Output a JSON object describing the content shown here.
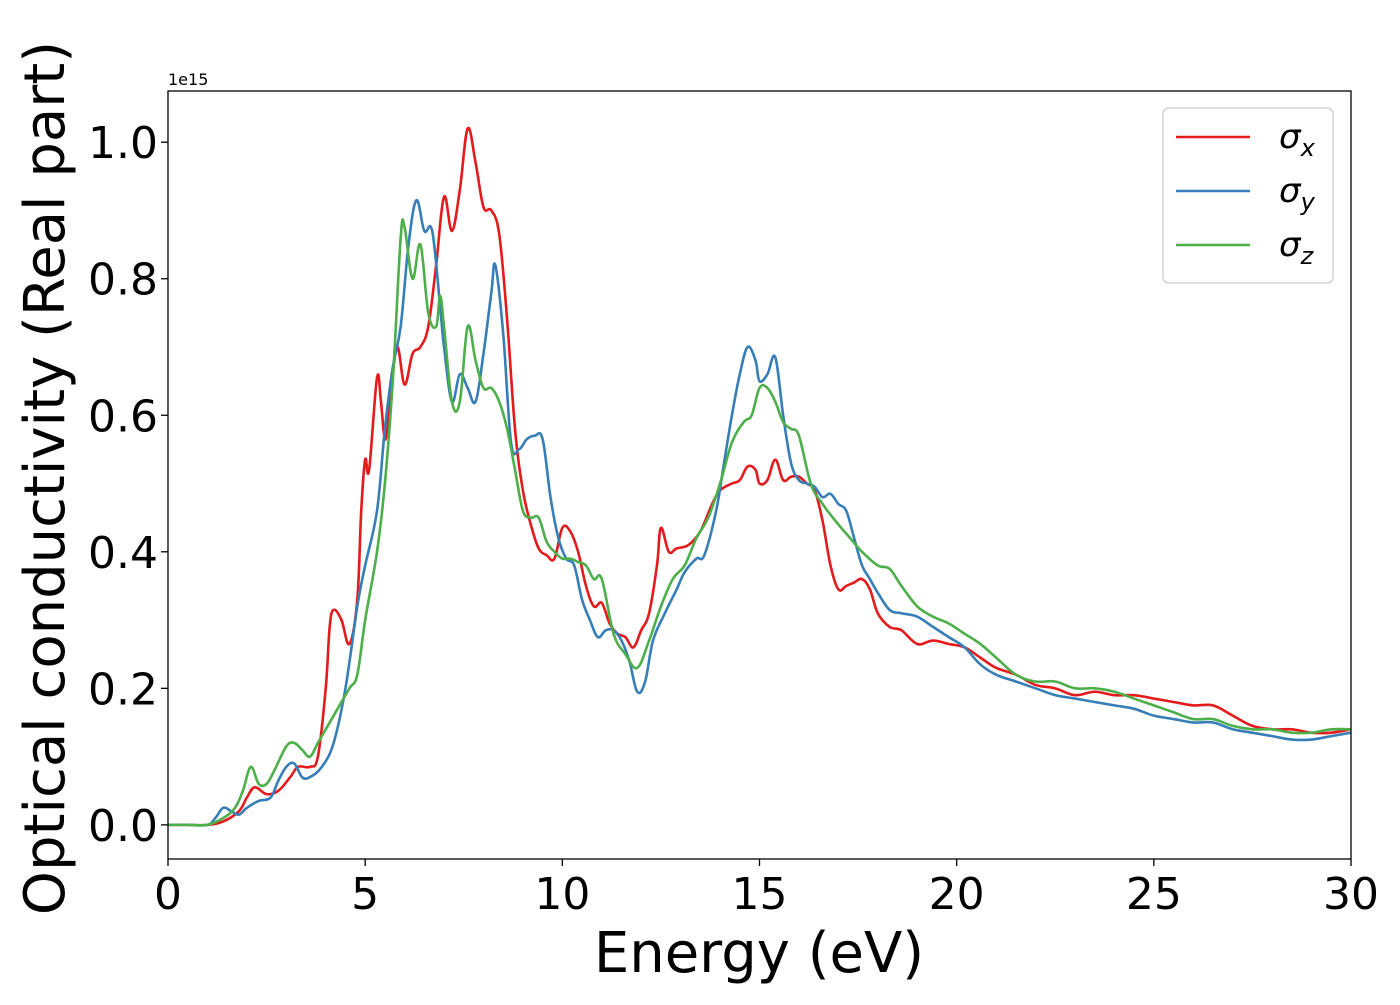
{
  "chart_data": {
    "type": "line",
    "title": "",
    "xlabel": "Energy (eV)",
    "ylabel": "Optical conductivity (Real part)",
    "offset_label": "1e15",
    "xlim": [
      0,
      30
    ],
    "ylim": [
      -0.05,
      1.075
    ],
    "xticks": [
      0,
      5,
      10,
      15,
      20,
      25,
      30
    ],
    "xtick_labels": [
      "0",
      "5",
      "10",
      "15",
      "20",
      "25",
      "30"
    ],
    "yticks": [
      0.0,
      0.2,
      0.4,
      0.6,
      0.8,
      1.0
    ],
    "ytick_labels": [
      "0.0",
      "0.2",
      "0.4",
      "0.6",
      "0.8",
      "1.0"
    ],
    "grid": false,
    "legend_position": "top-right",
    "series": [
      {
        "name": "σx",
        "legend_symbol": "σ",
        "legend_subscript": "x",
        "color": "#e41a1c",
        "x": [
          0,
          0.5,
          1.0,
          1.4,
          1.8,
          2.0,
          2.2,
          2.5,
          2.8,
          3.1,
          3.3,
          3.6,
          3.8,
          4.0,
          4.1,
          4.2,
          4.4,
          4.6,
          4.8,
          4.9,
          5.0,
          5.1,
          5.3,
          5.4,
          5.5,
          5.6,
          5.8,
          6.0,
          6.2,
          6.4,
          6.6,
          6.8,
          7.0,
          7.2,
          7.4,
          7.6,
          7.8,
          8.0,
          8.2,
          8.4,
          8.6,
          8.8,
          9.0,
          9.2,
          9.4,
          9.6,
          9.8,
          10.0,
          10.2,
          10.4,
          10.6,
          10.8,
          11.0,
          11.2,
          11.4,
          11.6,
          11.8,
          12.0,
          12.2,
          12.4,
          12.5,
          12.7,
          12.9,
          13.2,
          13.5,
          13.8,
          14.0,
          14.3,
          14.5,
          14.7,
          14.9,
          15.0,
          15.2,
          15.4,
          15.6,
          15.8,
          16.0,
          16.2,
          16.4,
          16.6,
          16.8,
          17.0,
          17.2,
          17.4,
          17.6,
          17.8,
          18.0,
          18.3,
          18.6,
          19.0,
          19.4,
          19.8,
          20.2,
          20.6,
          21.0,
          21.5,
          22.0,
          22.5,
          23.0,
          23.5,
          24.0,
          24.5,
          25.0,
          25.5,
          26.0,
          26.5,
          27.0,
          27.5,
          28.0,
          28.5,
          29.0,
          29.5,
          30.0
        ],
        "values": [
          0.0,
          0.0,
          0.0,
          0.005,
          0.02,
          0.04,
          0.055,
          0.045,
          0.05,
          0.07,
          0.085,
          0.085,
          0.1,
          0.2,
          0.29,
          0.315,
          0.3,
          0.265,
          0.33,
          0.46,
          0.535,
          0.52,
          0.655,
          0.62,
          0.565,
          0.6,
          0.7,
          0.645,
          0.69,
          0.7,
          0.73,
          0.82,
          0.92,
          0.87,
          0.93,
          1.02,
          0.97,
          0.905,
          0.9,
          0.865,
          0.74,
          0.58,
          0.49,
          0.44,
          0.405,
          0.395,
          0.39,
          0.435,
          0.43,
          0.4,
          0.35,
          0.32,
          0.325,
          0.295,
          0.28,
          0.275,
          0.26,
          0.285,
          0.31,
          0.38,
          0.435,
          0.4,
          0.405,
          0.41,
          0.43,
          0.47,
          0.49,
          0.5,
          0.505,
          0.525,
          0.52,
          0.5,
          0.505,
          0.535,
          0.505,
          0.51,
          0.51,
          0.5,
          0.49,
          0.445,
          0.38,
          0.345,
          0.35,
          0.355,
          0.36,
          0.345,
          0.31,
          0.29,
          0.285,
          0.265,
          0.27,
          0.265,
          0.26,
          0.245,
          0.23,
          0.22,
          0.205,
          0.2,
          0.19,
          0.195,
          0.19,
          0.19,
          0.185,
          0.18,
          0.175,
          0.175,
          0.16,
          0.145,
          0.14,
          0.14,
          0.135,
          0.135,
          0.14
        ]
      },
      {
        "name": "σy",
        "legend_symbol": "σ",
        "legend_subscript": "y",
        "color": "#377eb8",
        "x": [
          0,
          0.5,
          1.0,
          1.2,
          1.4,
          1.6,
          1.8,
          2.0,
          2.3,
          2.6,
          2.8,
          3.0,
          3.2,
          3.4,
          3.6,
          3.9,
          4.2,
          4.5,
          4.8,
          5.0,
          5.3,
          5.5,
          5.7,
          5.9,
          6.1,
          6.3,
          6.5,
          6.7,
          6.9,
          7.0,
          7.2,
          7.4,
          7.6,
          7.8,
          8.0,
          8.2,
          8.3,
          8.5,
          8.7,
          8.9,
          9.1,
          9.3,
          9.5,
          9.7,
          9.9,
          10.1,
          10.3,
          10.5,
          10.7,
          10.9,
          11.1,
          11.3,
          11.5,
          11.7,
          11.9,
          12.1,
          12.3,
          12.6,
          12.9,
          13.1,
          13.4,
          13.6,
          13.9,
          14.1,
          14.3,
          14.5,
          14.7,
          14.9,
          15.0,
          15.2,
          15.4,
          15.6,
          15.8,
          16.0,
          16.2,
          16.4,
          16.6,
          16.8,
          17.0,
          17.2,
          17.4,
          17.6,
          17.8,
          18.0,
          18.3,
          18.6,
          19.0,
          19.4,
          19.8,
          20.2,
          20.6,
          21.0,
          21.5,
          22.0,
          22.5,
          23.0,
          23.5,
          24.0,
          24.5,
          25.0,
          25.5,
          26.0,
          26.5,
          27.0,
          27.5,
          28.0,
          28.5,
          29.0,
          29.5,
          30.0
        ],
        "values": [
          0.0,
          0.0,
          0.0,
          0.01,
          0.025,
          0.02,
          0.015,
          0.025,
          0.035,
          0.04,
          0.065,
          0.085,
          0.09,
          0.07,
          0.07,
          0.085,
          0.12,
          0.2,
          0.32,
          0.38,
          0.46,
          0.58,
          0.67,
          0.73,
          0.85,
          0.915,
          0.87,
          0.87,
          0.76,
          0.7,
          0.62,
          0.66,
          0.64,
          0.62,
          0.69,
          0.78,
          0.82,
          0.72,
          0.56,
          0.55,
          0.565,
          0.57,
          0.565,
          0.48,
          0.42,
          0.39,
          0.38,
          0.33,
          0.3,
          0.275,
          0.285,
          0.285,
          0.27,
          0.24,
          0.195,
          0.21,
          0.27,
          0.31,
          0.345,
          0.37,
          0.39,
          0.395,
          0.46,
          0.53,
          0.6,
          0.66,
          0.7,
          0.68,
          0.65,
          0.66,
          0.685,
          0.6,
          0.53,
          0.505,
          0.5,
          0.495,
          0.48,
          0.485,
          0.47,
          0.46,
          0.42,
          0.38,
          0.36,
          0.34,
          0.315,
          0.31,
          0.305,
          0.29,
          0.275,
          0.26,
          0.235,
          0.22,
          0.21,
          0.2,
          0.19,
          0.185,
          0.18,
          0.175,
          0.17,
          0.16,
          0.155,
          0.15,
          0.15,
          0.14,
          0.135,
          0.13,
          0.125,
          0.125,
          0.13,
          0.135
        ]
      },
      {
        "name": "σz",
        "legend_symbol": "σ",
        "legend_subscript": "z",
        "color": "#4daf4a",
        "x": [
          0,
          0.5,
          1.0,
          1.4,
          1.7,
          1.9,
          2.1,
          2.3,
          2.5,
          2.7,
          3.0,
          3.2,
          3.4,
          3.6,
          3.8,
          4.0,
          4.3,
          4.6,
          4.8,
          5.0,
          5.3,
          5.5,
          5.7,
          5.9,
          6.0,
          6.2,
          6.4,
          6.6,
          6.8,
          6.9,
          7.0,
          7.2,
          7.4,
          7.6,
          7.8,
          8.0,
          8.2,
          8.4,
          8.6,
          8.8,
          9.0,
          9.2,
          9.4,
          9.6,
          9.8,
          10.0,
          10.2,
          10.4,
          10.6,
          10.8,
          11.0,
          11.3,
          11.6,
          11.9,
          12.2,
          12.5,
          12.8,
          13.1,
          13.4,
          13.7,
          14.0,
          14.3,
          14.6,
          14.8,
          15.0,
          15.2,
          15.4,
          15.6,
          15.8,
          16.0,
          16.3,
          16.6,
          17.0,
          17.3,
          17.6,
          18.0,
          18.3,
          18.6,
          19.0,
          19.4,
          19.8,
          20.2,
          20.6,
          21.0,
          21.5,
          22.0,
          22.5,
          23.0,
          23.5,
          24.0,
          24.5,
          25.0,
          25.5,
          26.0,
          26.5,
          27.0,
          27.5,
          28.0,
          28.5,
          29.0,
          29.5,
          30.0
        ],
        "values": [
          0.0,
          0.0,
          0.0,
          0.01,
          0.025,
          0.05,
          0.085,
          0.06,
          0.06,
          0.08,
          0.115,
          0.12,
          0.11,
          0.1,
          0.12,
          0.14,
          0.17,
          0.2,
          0.22,
          0.3,
          0.4,
          0.5,
          0.65,
          0.86,
          0.875,
          0.8,
          0.85,
          0.75,
          0.73,
          0.775,
          0.73,
          0.62,
          0.62,
          0.73,
          0.68,
          0.64,
          0.64,
          0.62,
          0.58,
          0.52,
          0.46,
          0.45,
          0.45,
          0.415,
          0.4,
          0.39,
          0.39,
          0.385,
          0.38,
          0.36,
          0.36,
          0.28,
          0.25,
          0.23,
          0.27,
          0.32,
          0.36,
          0.38,
          0.42,
          0.45,
          0.5,
          0.56,
          0.59,
          0.6,
          0.64,
          0.64,
          0.62,
          0.59,
          0.58,
          0.57,
          0.5,
          0.47,
          0.44,
          0.42,
          0.4,
          0.38,
          0.375,
          0.35,
          0.32,
          0.305,
          0.295,
          0.28,
          0.265,
          0.245,
          0.22,
          0.21,
          0.21,
          0.2,
          0.2,
          0.195,
          0.185,
          0.175,
          0.165,
          0.155,
          0.155,
          0.145,
          0.14,
          0.14,
          0.135,
          0.135,
          0.14,
          0.14
        ]
      }
    ]
  }
}
